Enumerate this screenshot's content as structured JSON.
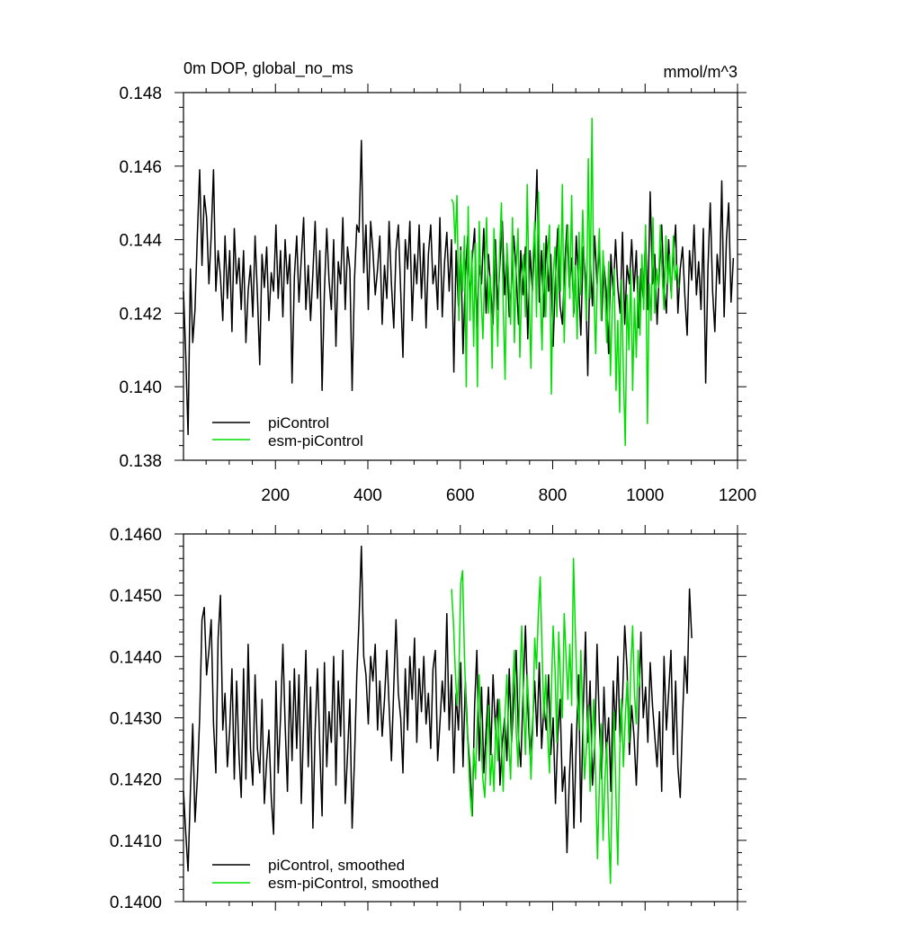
{
  "figure": {
    "panel_title": "0m DOP, global_no_ms",
    "units": "mmol/m^3"
  },
  "colors": {
    "piControl": "#000000",
    "esm_piControl": "#00dd00"
  },
  "chart_data": [
    {
      "type": "line",
      "title": "0m DOP, global_no_ms",
      "units": "mmol/m^3",
      "xlim": [
        1,
        1200
      ],
      "ylim": [
        0.138,
        0.148
      ],
      "xticks": [
        200,
        400,
        600,
        800,
        1000,
        1200
      ],
      "yticks": [
        0.138,
        0.14,
        0.142,
        0.144,
        0.146,
        0.148
      ],
      "ytick_labels": [
        "0.138",
        "0.140",
        "0.142",
        "0.144",
        "0.146",
        "0.148"
      ],
      "legend": "bottom-left",
      "series": [
        {
          "name": "piControl",
          "color": "#000000",
          "x_start": 1,
          "x_step": 5,
          "values": [
            0.1426,
            0.1408,
            0.1387,
            0.1432,
            0.1412,
            0.1421,
            0.1441,
            0.1459,
            0.1433,
            0.1452,
            0.1446,
            0.1428,
            0.1441,
            0.1459,
            0.1426,
            0.1437,
            0.143,
            0.1418,
            0.1441,
            0.1424,
            0.1437,
            0.1415,
            0.1443,
            0.1428,
            0.1435,
            0.1421,
            0.1437,
            0.1412,
            0.1426,
            0.1433,
            0.1419,
            0.1441,
            0.1425,
            0.1406,
            0.1436,
            0.1427,
            0.1438,
            0.1418,
            0.1431,
            0.1426,
            0.1444,
            0.1424,
            0.1437,
            0.1419,
            0.144,
            0.1428,
            0.1436,
            0.1401,
            0.143,
            0.1441,
            0.1423,
            0.1435,
            0.1446,
            0.1421,
            0.1433,
            0.1418,
            0.1431,
            0.1445,
            0.1424,
            0.1437,
            0.1399,
            0.1426,
            0.1443,
            0.1429,
            0.1421,
            0.144,
            0.1411,
            0.1434,
            0.1428,
            0.1446,
            0.1421,
            0.1438,
            0.1432,
            0.1399,
            0.1429,
            0.1444,
            0.1442,
            0.1467,
            0.1431,
            0.1444,
            0.1421,
            0.1445,
            0.1437,
            0.1425,
            0.1432,
            0.1441,
            0.1417,
            0.1433,
            0.1424,
            0.1445,
            0.1428,
            0.1416,
            0.1437,
            0.1444,
            0.1426,
            0.1408,
            0.144,
            0.1432,
            0.1445,
            0.1418,
            0.1436,
            0.1428,
            0.1444,
            0.1424,
            0.1439,
            0.1416,
            0.1436,
            0.1444,
            0.1428,
            0.1433,
            0.1421,
            0.1446,
            0.1419,
            0.1434,
            0.1442,
            0.1426,
            0.144,
            0.1404,
            0.1437,
            0.1422,
            0.1438,
            0.1409,
            0.143,
            0.1441,
            0.1424,
            0.1435,
            0.1443,
            0.1416,
            0.1433,
            0.1428,
            0.1443,
            0.142,
            0.1436,
            0.1426,
            0.1417,
            0.144,
            0.1421,
            0.1434,
            0.1445,
            0.1425,
            0.1436,
            0.1419,
            0.1428,
            0.1441,
            0.1431,
            0.1417,
            0.1437,
            0.1425,
            0.1438,
            0.1413,
            0.1437,
            0.1426,
            0.144,
            0.1459,
            0.1423,
            0.1437,
            0.1419,
            0.1441,
            0.1426,
            0.1436,
            0.1411,
            0.143,
            0.1443,
            0.1422,
            0.1417,
            0.1433,
            0.1444,
            0.1427,
            0.1435,
            0.142,
            0.1441,
            0.1428,
            0.1414,
            0.1438,
            0.143,
            0.1403,
            0.1435,
            0.1422,
            0.1441,
            0.1428,
            0.1438,
            0.1418,
            0.1433,
            0.1426,
            0.1409,
            0.1436,
            0.1425,
            0.144,
            0.1427,
            0.142,
            0.1442,
            0.1417,
            0.1433,
            0.1428,
            0.144,
            0.1426,
            0.1437,
            0.1416,
            0.1432,
            0.1424,
            0.1441,
            0.1421,
            0.1453,
            0.1428,
            0.1436,
            0.1417,
            0.1432,
            0.1444,
            0.1427,
            0.142,
            0.144,
            0.1426,
            0.1435,
            0.1444,
            0.142,
            0.1432,
            0.1438,
            0.1425,
            0.1414,
            0.1437,
            0.1429,
            0.1444,
            0.1425,
            0.1434,
            0.1421,
            0.1443,
            0.1401,
            0.1432,
            0.145,
            0.1426,
            0.1415,
            0.1436,
            0.1428,
            0.1456,
            0.1419,
            0.144,
            0.145,
            0.1423,
            0.1435
          ]
        },
        {
          "name": "esm-piControl",
          "color": "#00dd00",
          "x_start": 581,
          "x_step": 4,
          "values": [
            0.1451,
            0.145,
            0.1439,
            0.1452,
            0.1418,
            0.1437,
            0.1426,
            0.1441,
            0.14,
            0.1449,
            0.1418,
            0.1437,
            0.1411,
            0.1439,
            0.14,
            0.1445,
            0.1425,
            0.1413,
            0.1432,
            0.1446,
            0.142,
            0.143,
            0.1405,
            0.1443,
            0.1428,
            0.1411,
            0.1436,
            0.145,
            0.1422,
            0.1402,
            0.1439,
            0.1429,
            0.1417,
            0.1446,
            0.1412,
            0.1432,
            0.1443,
            0.1408,
            0.1429,
            0.1436,
            0.1419,
            0.1455,
            0.1425,
            0.1405,
            0.1434,
            0.1445,
            0.1419,
            0.1453,
            0.1426,
            0.141,
            0.1439,
            0.1419,
            0.1436,
            0.1444,
            0.1398,
            0.143,
            0.1438,
            0.1419,
            0.1444,
            0.1426,
            0.1455,
            0.1412,
            0.1435,
            0.1444,
            0.1424,
            0.1452,
            0.1419,
            0.1433,
            0.1413,
            0.1442,
            0.1425,
            0.1448,
            0.1431,
            0.1418,
            0.1462,
            0.1424,
            0.1473,
            0.1427,
            0.1409,
            0.1431,
            0.1443,
            0.1418,
            0.1437,
            0.1426,
            0.1412,
            0.1434,
            0.1403,
            0.1422,
            0.1432,
            0.1399,
            0.1418,
            0.1393,
            0.1429,
            0.1404,
            0.1384,
            0.1425,
            0.141,
            0.1432,
            0.1399,
            0.1424,
            0.1408,
            0.143,
            0.1414,
            0.1436,
            0.1421,
            0.1444,
            0.139,
            0.1428,
            0.1418,
            0.1446,
            0.142,
            0.1432,
            0.1427,
            0.1444,
            0.143,
            0.1421,
            0.1441,
            0.1428,
            0.1436,
            0.1424,
            0.1441,
            0.1429,
            0.1433,
            0.1427
          ]
        }
      ],
      "legend_entries": [
        "piControl",
        "esm-piControl"
      ]
    },
    {
      "type": "line",
      "xlim": [
        1,
        1200
      ],
      "ylim": [
        0.14,
        0.146
      ],
      "xticks": [
        200,
        400,
        600,
        800,
        1000,
        1200
      ],
      "yticks": [
        0.14,
        0.141,
        0.142,
        0.143,
        0.144,
        0.145,
        0.146
      ],
      "ytick_labels": [
        "0.1400",
        "0.1410",
        "0.1420",
        "0.1430",
        "0.1440",
        "0.1450",
        "0.1460"
      ],
      "legend": "bottom-left",
      "series": [
        {
          "name": "piControl, smoothed",
          "color": "#000000",
          "x_start": 1,
          "x_step": 5,
          "values": [
            0.1418,
            0.1411,
            0.1405,
            0.1418,
            0.1429,
            0.1413,
            0.142,
            0.143,
            0.1446,
            0.1448,
            0.1437,
            0.1441,
            0.1446,
            0.1429,
            0.1421,
            0.1443,
            0.145,
            0.1428,
            0.1434,
            0.1422,
            0.1428,
            0.1438,
            0.142,
            0.1436,
            0.1424,
            0.1417,
            0.1438,
            0.142,
            0.1442,
            0.1425,
            0.1419,
            0.1437,
            0.1425,
            0.1421,
            0.1433,
            0.1416,
            0.1423,
            0.1428,
            0.1417,
            0.1411,
            0.1436,
            0.1421,
            0.143,
            0.1442,
            0.1429,
            0.1418,
            0.1436,
            0.1423,
            0.1438,
            0.1425,
            0.1437,
            0.1416,
            0.1429,
            0.1441,
            0.1422,
            0.1435,
            0.1412,
            0.1428,
            0.1438,
            0.1425,
            0.1414,
            0.1439,
            0.1422,
            0.1431,
            0.1426,
            0.144,
            0.1419,
            0.1436,
            0.1427,
            0.1441,
            0.1416,
            0.1424,
            0.1433,
            0.1412,
            0.1423,
            0.1437,
            0.1446,
            0.1458,
            0.144,
            0.1437,
            0.1429,
            0.144,
            0.1436,
            0.1442,
            0.1428,
            0.1436,
            0.1427,
            0.1433,
            0.1441,
            0.1432,
            0.1423,
            0.1435,
            0.1446,
            0.1434,
            0.143,
            0.1421,
            0.1438,
            0.1428,
            0.144,
            0.1433,
            0.1443,
            0.1426,
            0.1438,
            0.1431,
            0.144,
            0.1429,
            0.1434,
            0.1425,
            0.1438,
            0.1441,
            0.1423,
            0.1429,
            0.1436,
            0.1431,
            0.1447,
            0.1428,
            0.1437,
            0.1421,
            0.1434,
            0.1428,
            0.1439,
            0.1422,
            0.1436,
            0.1427,
            0.1422,
            0.1414,
            0.1432,
            0.1441,
            0.1423,
            0.1435,
            0.1421,
            0.1428,
            0.1435,
            0.1424,
            0.1437,
            0.1428,
            0.1433,
            0.1419,
            0.1426,
            0.143,
            0.1423,
            0.1438,
            0.1426,
            0.1433,
            0.1441,
            0.1427,
            0.1422,
            0.1434,
            0.1445,
            0.1432,
            0.1424,
            0.1428,
            0.1436,
            0.1427,
            0.1439,
            0.1425,
            0.1432,
            0.1428,
            0.1437,
            0.1424,
            0.143,
            0.1416,
            0.1427,
            0.1433,
            0.1418,
            0.1422,
            0.1408,
            0.142,
            0.1429,
            0.1412,
            0.1426,
            0.1437,
            0.1413,
            0.1431,
            0.1444,
            0.1426,
            0.1436,
            0.1419,
            0.1425,
            0.1442,
            0.1429,
            0.142,
            0.1435,
            0.1424,
            0.143,
            0.1418,
            0.1436,
            0.1428,
            0.144,
            0.1426,
            0.1433,
            0.1445,
            0.1438,
            0.1424,
            0.1432,
            0.1427,
            0.1419,
            0.143,
            0.1444,
            0.143,
            0.1435,
            0.1426,
            0.1439,
            0.1432,
            0.1427,
            0.1422,
            0.1431,
            0.1418,
            0.144,
            0.1428,
            0.1434,
            0.1441,
            0.1424,
            0.1436,
            0.1422,
            0.1417,
            0.143,
            0.144,
            0.1434,
            0.1451,
            0.1443
          ]
        },
        {
          "name": "esm-piControl, smoothed",
          "color": "#00dd00",
          "x_start": 581,
          "x_step": 4,
          "values": [
            0.1451,
            0.1446,
            0.1438,
            0.1432,
            0.1437,
            0.1452,
            0.1454,
            0.144,
            0.1431,
            0.1425,
            0.1418,
            0.1414,
            0.1425,
            0.142,
            0.143,
            0.1437,
            0.1426,
            0.142,
            0.1417,
            0.1425,
            0.1432,
            0.1419,
            0.1424,
            0.1418,
            0.143,
            0.1423,
            0.1433,
            0.1426,
            0.1418,
            0.1431,
            0.1437,
            0.1426,
            0.142,
            0.1434,
            0.1441,
            0.1428,
            0.1422,
            0.1436,
            0.1445,
            0.1432,
            0.1424,
            0.1437,
            0.1431,
            0.142,
            0.1428,
            0.1443,
            0.1438,
            0.1447,
            0.1453,
            0.1441,
            0.143,
            0.1437,
            0.1428,
            0.1421,
            0.1434,
            0.1445,
            0.1438,
            0.1426,
            0.1444,
            0.1436,
            0.143,
            0.1447,
            0.144,
            0.1433,
            0.1442,
            0.1432,
            0.1456,
            0.1444,
            0.1434,
            0.1428,
            0.1441,
            0.143,
            0.142,
            0.1425,
            0.1432,
            0.1418,
            0.1427,
            0.1433,
            0.142,
            0.1407,
            0.1419,
            0.1429,
            0.141,
            0.142,
            0.1426,
            0.1412,
            0.1403,
            0.1421,
            0.1431,
            0.1417,
            0.1406,
            0.1424,
            0.1433,
            0.1422,
            0.143,
            0.1436,
            0.1426,
            0.1438,
            0.1445,
            0.1434,
            0.1429,
            0.1441,
            0.1435
          ]
        }
      ],
      "legend_entries": [
        "piControl, smoothed",
        "esm-piControl, smoothed"
      ]
    }
  ]
}
